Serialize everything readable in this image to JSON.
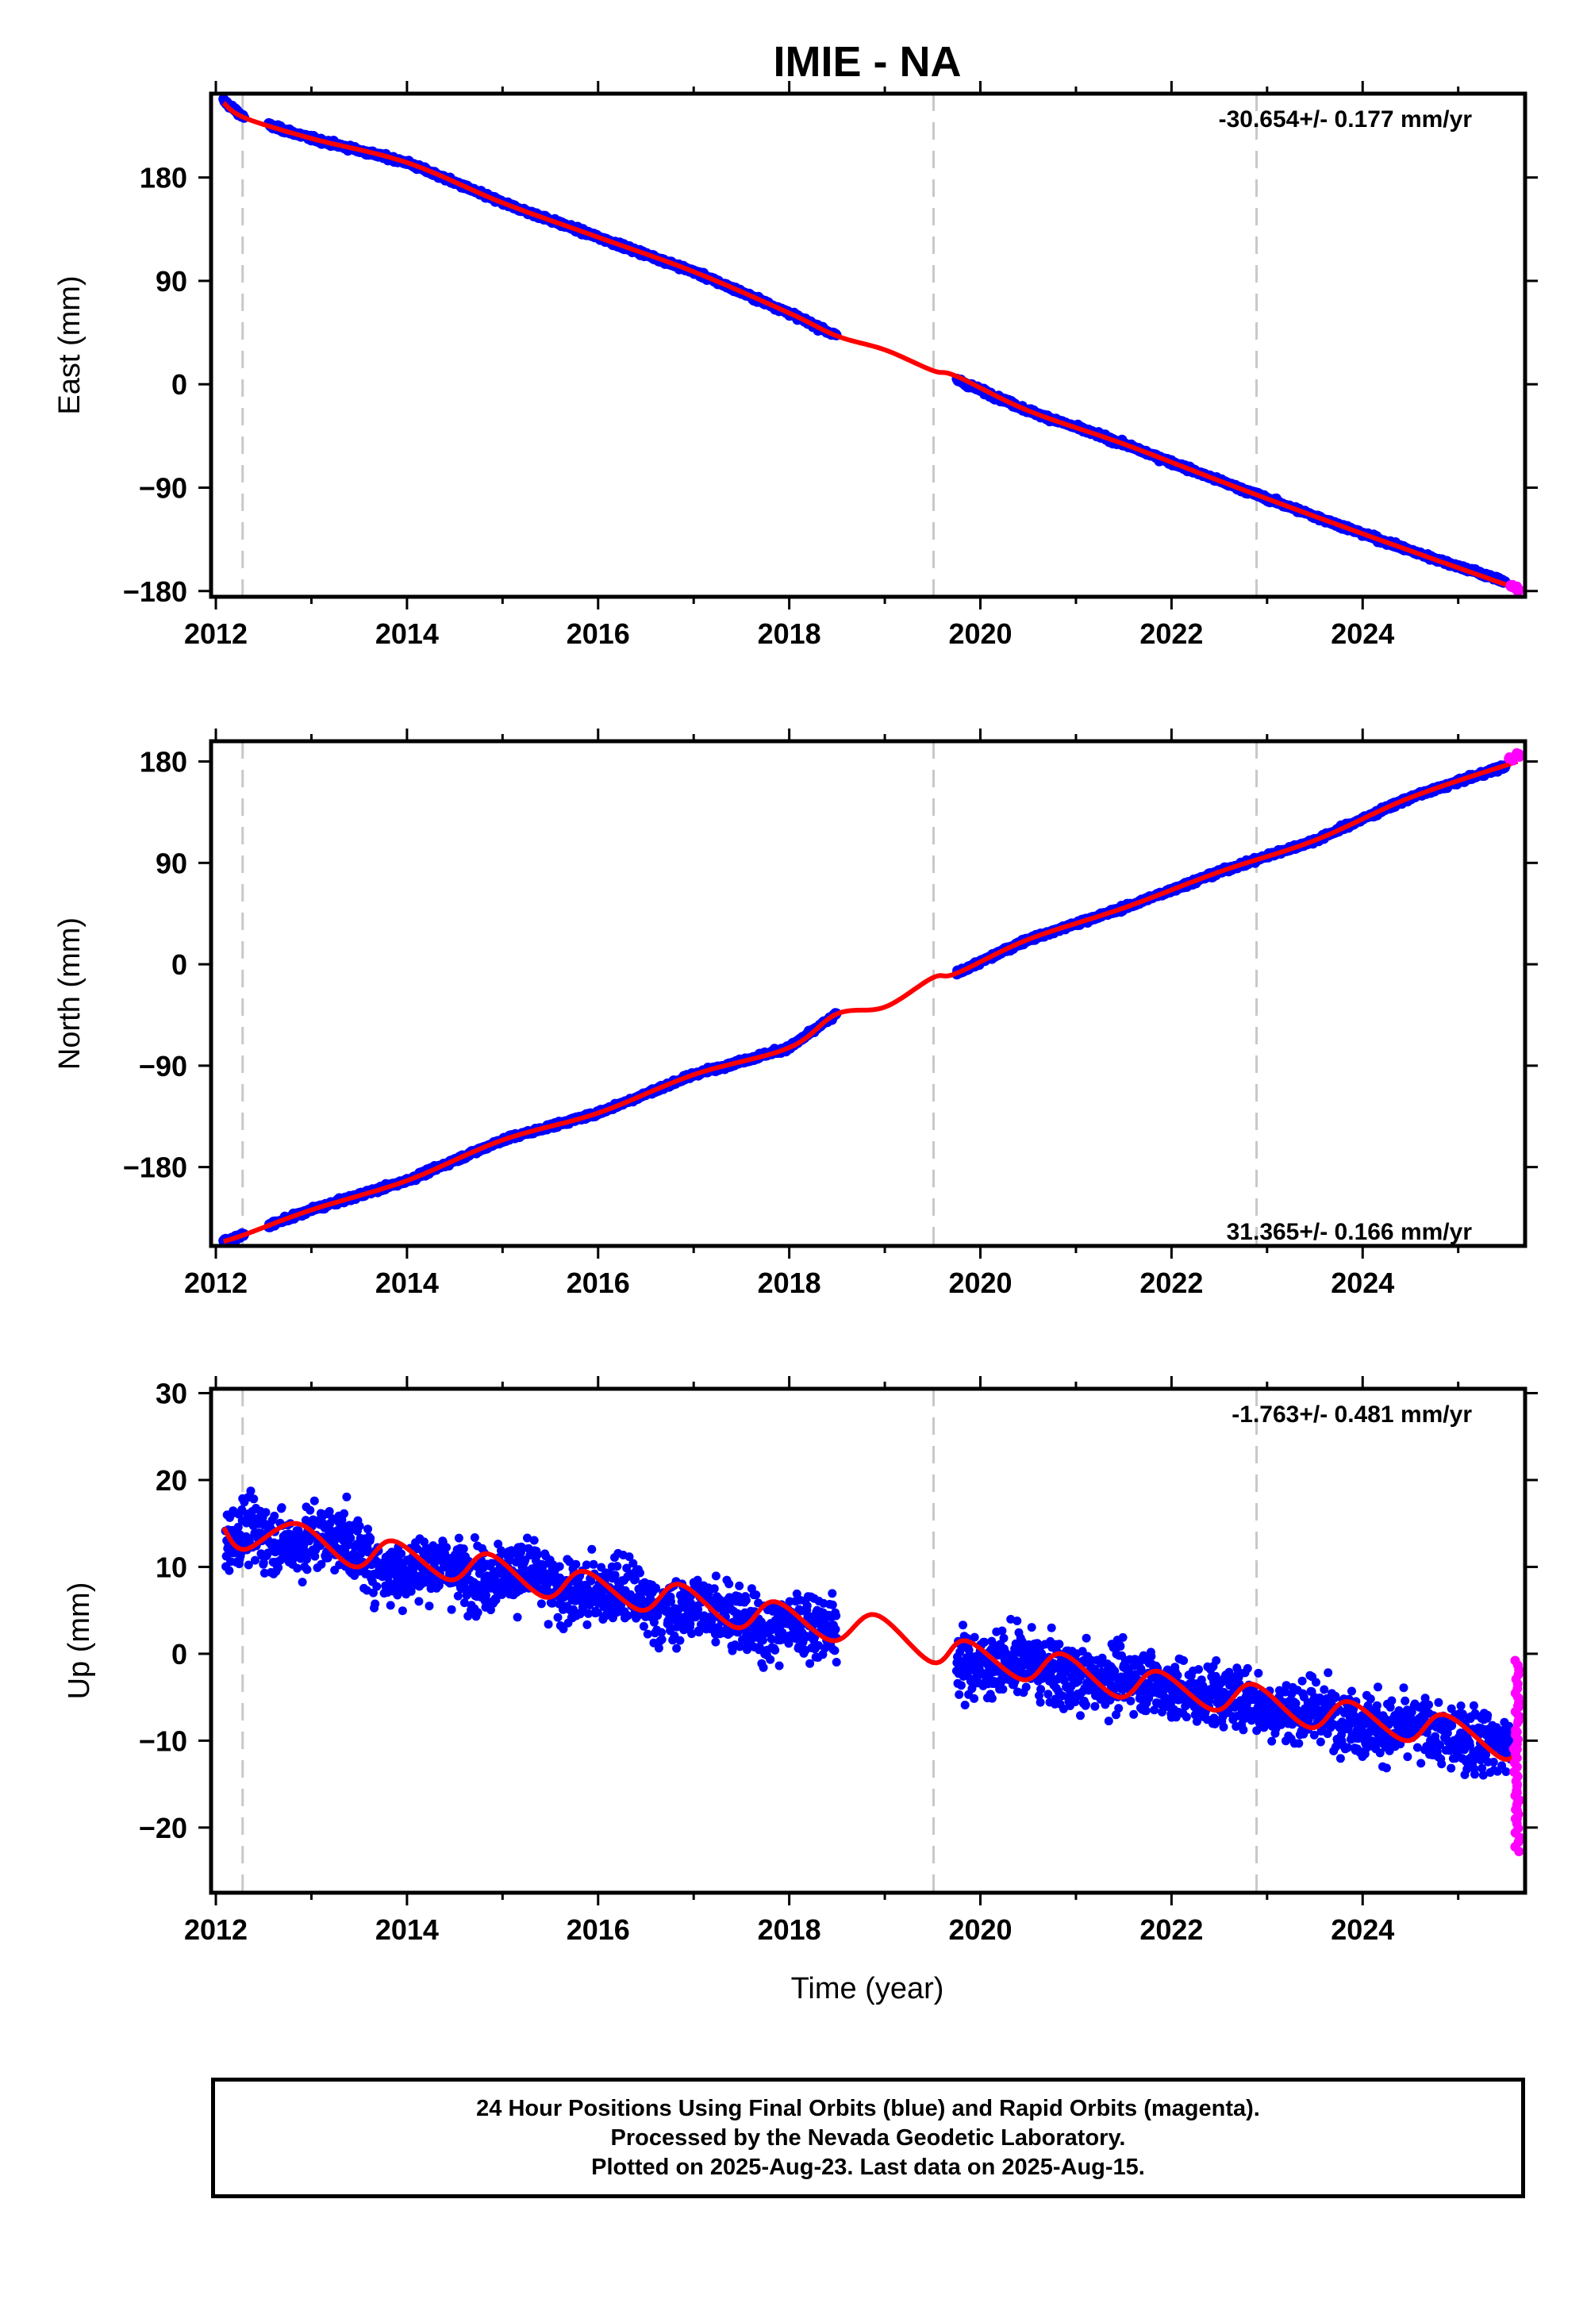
{
  "title": "IMIE - NA",
  "xlabel": "Time (year)",
  "footer": {
    "line1": "24 Hour Positions Using Final Orbits (blue) and Rapid Orbits (magenta).",
    "line2": "Processed by the Nevada Geodetic Laboratory.",
    "line3": "Plotted on 2025-Aug-23. Last data on 2025-Aug-15."
  },
  "colors": {
    "final": "#0000ff",
    "rapid": "#ff00ff",
    "model": "#ff0000",
    "equipment_change": "#c8c8c8"
  },
  "xlim": [
    2011.95,
    2025.7
  ],
  "xticks": [
    2012,
    2014,
    2016,
    2018,
    2020,
    2022,
    2024
  ],
  "equipment_change_lines": [
    2012.28,
    2019.51,
    2022.89
  ],
  "data_gap": [
    2018.5,
    2019.75
  ],
  "last_data": 2025.62,
  "chart_data": [
    {
      "type": "scatter",
      "component": "east",
      "ylabel": "East (mm)",
      "rate": "-30.654+/- 0.177 mm/yr",
      "ylim": [
        -185,
        253
      ],
      "yticks": [
        -180,
        -90,
        0,
        90,
        180
      ],
      "series": [
        {
          "name": "Final Orbits (blue)",
          "x": [
            2012.08,
            2012.3,
            2013.0,
            2014.0,
            2015.0,
            2016.0,
            2017.0,
            2018.0,
            2018.5,
            2019.75,
            2020.5,
            2021.5,
            2022.5,
            2023.5,
            2024.5,
            2025.5
          ],
          "y": [
            247,
            232,
            214,
            193,
            158,
            128,
            98,
            62,
            42,
            4,
            -23,
            -52,
            -84,
            -115,
            -145,
            -172
          ]
        },
        {
          "name": "Rapid Orbits (magenta)",
          "x": [
            2025.55,
            2025.62
          ],
          "y": [
            -175,
            -179
          ]
        }
      ],
      "model": {
        "x": [
          2012.08,
          2012.3,
          2013.0,
          2014.0,
          2015.0,
          2016.0,
          2017.0,
          2018.0,
          2018.5,
          2019.0,
          2019.5,
          2019.75,
          2020.5,
          2021.5,
          2022.5,
          2023.5,
          2024.5,
          2025.62
        ],
        "y": [
          245,
          232,
          214,
          193,
          158,
          128,
          98,
          62,
          42,
          30,
          12,
          7,
          -23,
          -52,
          -84,
          -115,
          -145,
          -178
        ]
      }
    },
    {
      "type": "scatter",
      "component": "north",
      "ylabel": "North (mm)",
      "rate": "31.365+/- 0.166 mm/yr",
      "ylim": [
        -250,
        198
      ],
      "yticks": [
        -180,
        -90,
        0,
        90,
        180
      ],
      "series": [
        {
          "name": "Final Orbits (blue)",
          "x": [
            2012.08,
            2012.3,
            2013.0,
            2014.0,
            2015.0,
            2016.0,
            2017.0,
            2018.0,
            2018.5,
            2019.75,
            2020.5,
            2021.5,
            2022.5,
            2023.5,
            2024.5,
            2025.5
          ],
          "y": [
            -246,
            -240,
            -218,
            -192,
            -156,
            -132,
            -98,
            -74,
            -44,
            -8,
            22,
            50,
            82,
            110,
            148,
            176
          ]
        },
        {
          "name": "Rapid Orbits (magenta)",
          "x": [
            2025.55,
            2025.62
          ],
          "y": [
            182,
            186
          ]
        }
      ],
      "model": {
        "x": [
          2012.08,
          2012.3,
          2013.0,
          2014.0,
          2015.0,
          2016.0,
          2017.0,
          2018.0,
          2018.5,
          2019.0,
          2019.5,
          2019.75,
          2020.5,
          2021.5,
          2022.5,
          2023.5,
          2024.5,
          2025.62
        ],
        "y": [
          -246,
          -240,
          -218,
          -192,
          -156,
          -132,
          -98,
          -74,
          -44,
          -38,
          -12,
          -8,
          22,
          50,
          82,
          110,
          148,
          180
        ]
      }
    },
    {
      "type": "scatter",
      "component": "up",
      "ylabel": "Up (mm)",
      "rate": "-1.763+/- 0.481 mm/yr",
      "ylim": [
        -27.5,
        30.5
      ],
      "yticks": [
        -20,
        -10,
        0,
        10,
        20,
        30
      ],
      "series": [
        {
          "name": "Final Orbits (blue)",
          "x": [
            2012.1,
            2012.6,
            2013.0,
            2013.5,
            2014.0,
            2014.5,
            2015.0,
            2015.5,
            2016.0,
            2016.5,
            2017.0,
            2017.5,
            2018.0,
            2018.4,
            2019.8,
            2020.3,
            2020.8,
            2021.3,
            2021.8,
            2022.3,
            2022.8,
            2023.3,
            2023.8,
            2024.3,
            2024.8,
            2025.3,
            2025.55
          ],
          "y": [
            13,
            13,
            14,
            11,
            10,
            9,
            10,
            7,
            8,
            5,
            6,
            3,
            4,
            2,
            0,
            -2,
            -1,
            -4,
            -2,
            -6,
            -4,
            -8,
            -6,
            -10,
            -8,
            -11,
            -11
          ]
        },
        {
          "name": "Rapid Orbits (magenta)",
          "x": [
            2025.6,
            2025.62,
            2025.62
          ],
          "y": [
            -12,
            -4,
            -19
          ]
        }
      ],
      "model": {
        "x": [
          2012.08,
          2012.3,
          2012.85,
          2013.45,
          2013.85,
          2014.45,
          2014.85,
          2015.45,
          2015.85,
          2016.45,
          2016.85,
          2017.45,
          2017.85,
          2018.45,
          2018.9,
          2019.5,
          2019.85,
          2020.45,
          2020.85,
          2021.45,
          2021.85,
          2022.45,
          2022.85,
          2023.45,
          2023.85,
          2024.45,
          2024.85,
          2025.45,
          2025.62
        ],
        "y": [
          14.5,
          12,
          15,
          10,
          13,
          8.5,
          11.5,
          6.5,
          9.5,
          5,
          8,
          3,
          6,
          1.5,
          4.5,
          -1,
          1.5,
          -3,
          0,
          -5,
          -2,
          -6.5,
          -3.5,
          -8.5,
          -5.5,
          -10,
          -7,
          -12,
          -11
        ]
      }
    }
  ]
}
